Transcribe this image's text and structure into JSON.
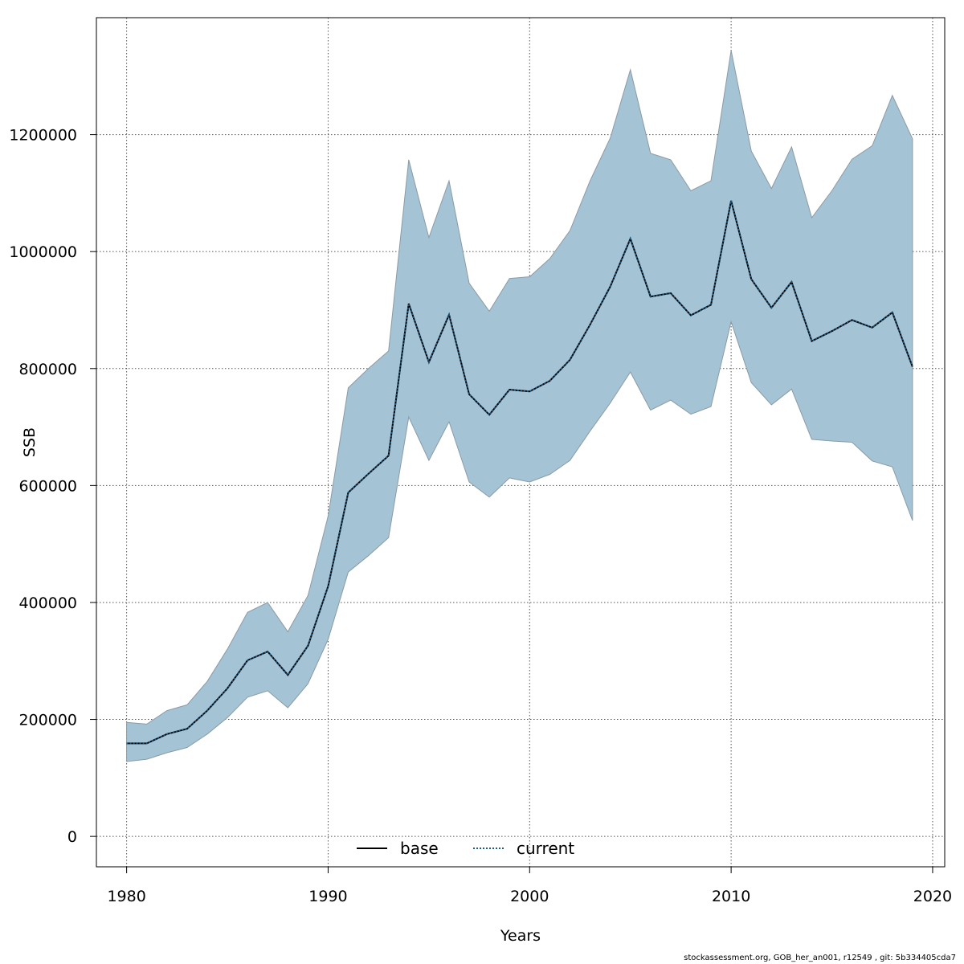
{
  "chart_data": {
    "type": "line",
    "xlabel": "Years",
    "ylabel": "SSB",
    "xlim": [
      1978.5,
      2020.6
    ],
    "ylim": [
      -52000,
      1400000
    ],
    "x_ticks": [
      1980,
      1990,
      2000,
      2010,
      2020
    ],
    "y_ticks": [
      0,
      200000,
      400000,
      600000,
      800000,
      1000000,
      1200000
    ],
    "grid": true,
    "legend_position": "bottom-center",
    "colors": {
      "band_fill": "#a4c3d4",
      "band_edge": "#8a9ba5",
      "base": "#000000",
      "current": "#1f5a80"
    },
    "x": [
      1980,
      1981,
      1982,
      1983,
      1984,
      1985,
      1986,
      1987,
      1988,
      1989,
      1990,
      1991,
      1992,
      1993,
      1994,
      1995,
      1996,
      1997,
      1998,
      1999,
      2000,
      2001,
      2002,
      2003,
      2004,
      2005,
      2006,
      2007,
      2008,
      2009,
      2010,
      2011,
      2012,
      2013,
      2014,
      2015,
      2016,
      2017,
      2018,
      2019
    ],
    "band_upper": [
      195000,
      192000,
      215000,
      225000,
      265000,
      320000,
      383000,
      400000,
      350000,
      412000,
      548000,
      767000,
      800000,
      830000,
      1157000,
      1024000,
      1121000,
      946000,
      898000,
      954000,
      957000,
      988000,
      1036000,
      1121000,
      1194000,
      1311000,
      1168000,
      1157000,
      1104000,
      1121000,
      1344000,
      1172000,
      1108000,
      1179000,
      1058000,
      1104000,
      1158000,
      1181000,
      1267000,
      1193000
    ],
    "band_lower": [
      128000,
      132000,
      143000,
      152000,
      175000,
      203000,
      238000,
      249000,
      220000,
      261000,
      337000,
      452000,
      480000,
      511000,
      717000,
      643000,
      709000,
      606000,
      580000,
      613000,
      606000,
      619000,
      643000,
      693000,
      741000,
      794000,
      729000,
      746000,
      722000,
      735000,
      880000,
      776000,
      738000,
      765000,
      679000,
      676000,
      674000,
      642000,
      632000,
      540000
    ],
    "series": [
      {
        "name": "base",
        "values": [
          159000,
          159000,
          175000,
          184000,
          215000,
          253000,
          301000,
          316000,
          276000,
          326000,
          428000,
          588000,
          620000,
          651000,
          911000,
          811000,
          892000,
          756000,
          721000,
          764000,
          761000,
          779000,
          815000,
          875000,
          940000,
          1022000,
          923000,
          929000,
          891000,
          909000,
          1087000,
          953000,
          904000,
          948000,
          847000,
          864000,
          883000,
          870000,
          896000,
          803000
        ]
      },
      {
        "name": "current",
        "values": [
          159000,
          159000,
          175000,
          184000,
          215000,
          253000,
          301000,
          316000,
          276000,
          326000,
          428000,
          588000,
          620000,
          651000,
          911000,
          811000,
          892000,
          756000,
          721000,
          764000,
          761000,
          779000,
          815000,
          875000,
          940000,
          1022000,
          923000,
          929000,
          891000,
          909000,
          1087000,
          953000,
          904000,
          948000,
          847000,
          864000,
          883000,
          870000,
          896000,
          803000
        ]
      }
    ]
  },
  "footer": "stockassessment.org, GOB_her_an001, r12549 , git: 5b334405cda7"
}
